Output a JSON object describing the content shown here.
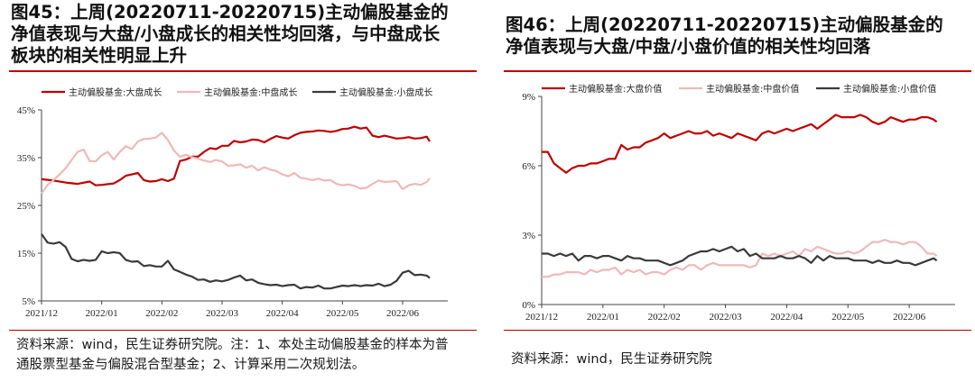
{
  "left": {
    "title_lines": [
      "图45：上周(20220711-20220715)主动偏股基金的",
      "净值表现与大盘/小盘成长的相关性均回落，与中盘成长",
      "板块的相关性明显上升"
    ],
    "source_lines": [
      "资料来源：wind，民生证券研究院。注：1、本处主动偏股基金的样本为普",
      "通股票型基金与偏股混合型基金；2、计算采用二次规划法。"
    ]
  },
  "right": {
    "title_lines": [
      "图46：上周(20220711-20220715)主动偏股基金的",
      "净值表现与大盘/中盘/小盘价值的相关性均回落"
    ],
    "source_lines": [
      "资料来源：wind，民生证券研究院"
    ]
  },
  "colors": {
    "rule": "#c00000",
    "large": "#c00000",
    "mid": "#f0b8b8",
    "small": "#3a3a3a"
  },
  "chart_data": [
    {
      "type": "line",
      "title": "",
      "xlabel": "",
      "ylabel": "",
      "ylim": [
        5,
        45
      ],
      "yticks": [
        "45%",
        "35%",
        "25%",
        "15%",
        "5%"
      ],
      "ytick_values": [
        45,
        35,
        25,
        15,
        5
      ],
      "xlim": [
        0,
        135
      ],
      "xticks": [
        "2021/12",
        "2022/01",
        "2022/02",
        "2022/03",
        "2022/04",
        "2022/05",
        "2022/06"
      ],
      "xtick_values": [
        0,
        20,
        40,
        60,
        80,
        100,
        120
      ],
      "legend_position": "top",
      "series": [
        {
          "name": "主动偏股基金:大盘成长",
          "color": "#c00000",
          "x": [
            0,
            4,
            8,
            12,
            16,
            18,
            20,
            24,
            26,
            28,
            30,
            32,
            34,
            36,
            38,
            40,
            42,
            44,
            46,
            48,
            50,
            52,
            54,
            56,
            58,
            60,
            62,
            64,
            66,
            68,
            70,
            72,
            74,
            76,
            78,
            80,
            82,
            84,
            86,
            88,
            90,
            92,
            94,
            96,
            98,
            100,
            102,
            104,
            106,
            108,
            110,
            112,
            114,
            116,
            118,
            120,
            122,
            124,
            126,
            128,
            129
          ],
          "values": [
            30.5,
            30.2,
            29.8,
            29.5,
            30,
            29.2,
            29.3,
            29.6,
            30.3,
            31.2,
            31.5,
            31.8,
            30.3,
            30,
            30.1,
            30.5,
            30.1,
            30.6,
            34.3,
            34.6,
            35.2,
            35.2,
            36.2,
            37,
            36.8,
            37.5,
            37.5,
            38.5,
            38.2,
            38.4,
            38.8,
            38.7,
            38.2,
            38.9,
            39.5,
            39.2,
            39,
            39.7,
            40.2,
            40.4,
            40.5,
            40.7,
            40.6,
            40.4,
            40.6,
            41,
            41.1,
            41.5,
            41.1,
            41.3,
            39.6,
            39.3,
            39.6,
            39.3,
            39,
            39.1,
            39.3,
            39,
            39.1,
            39.4,
            38.4
          ]
        },
        {
          "name": "主动偏股基金:中盘成长",
          "color": "#f0b8b8",
          "x": [
            0,
            2,
            4,
            6,
            8,
            10,
            12,
            14,
            16,
            18,
            20,
            22,
            24,
            26,
            28,
            30,
            32,
            34,
            36,
            38,
            40,
            42,
            44,
            46,
            48,
            50,
            52,
            54,
            56,
            58,
            60,
            62,
            64,
            66,
            68,
            70,
            72,
            74,
            76,
            78,
            80,
            82,
            84,
            86,
            88,
            90,
            92,
            94,
            96,
            98,
            100,
            102,
            104,
            106,
            108,
            110,
            112,
            114,
            116,
            118,
            120,
            122,
            124,
            126,
            128,
            129
          ],
          "values": [
            27.5,
            29.3,
            30.3,
            31.5,
            32.8,
            34.5,
            36.2,
            36.7,
            34.3,
            34.2,
            35.5,
            36.2,
            34.6,
            36.2,
            37.4,
            36.8,
            38.4,
            38.9,
            39,
            39.2,
            40.2,
            38.7,
            36.5,
            35.2,
            35.6,
            35.1,
            34.8,
            34.4,
            34.1,
            34.5,
            34.2,
            33.3,
            33.4,
            33.6,
            32.9,
            33.3,
            32.3,
            33,
            32.5,
            32.2,
            31.5,
            31.1,
            31.8,
            30.8,
            30.6,
            30.3,
            30.6,
            30.2,
            30.3,
            29.5,
            29.2,
            29.4,
            29.1,
            28.5,
            28.7,
            29.5,
            30.2,
            29.9,
            30,
            30.1,
            28.4,
            29.2,
            29.5,
            29.3,
            29.9,
            30.7
          ]
        },
        {
          "name": "主动偏股基金:小盘成长",
          "color": "#3a3a3a",
          "x": [
            0,
            2,
            4,
            6,
            8,
            10,
            12,
            14,
            16,
            18,
            20,
            22,
            24,
            26,
            28,
            30,
            32,
            34,
            36,
            38,
            40,
            42,
            44,
            46,
            48,
            50,
            52,
            54,
            56,
            58,
            60,
            62,
            64,
            66,
            68,
            70,
            72,
            74,
            76,
            78,
            80,
            82,
            84,
            86,
            88,
            90,
            92,
            94,
            96,
            98,
            100,
            102,
            104,
            106,
            108,
            110,
            112,
            114,
            116,
            118,
            120,
            122,
            124,
            126,
            128,
            129
          ],
          "values": [
            19,
            17.2,
            17,
            17.3,
            16.3,
            13.8,
            13.3,
            13.6,
            13.4,
            13.6,
            15.4,
            15,
            15.2,
            15,
            13.6,
            13.2,
            13.3,
            12.3,
            12.5,
            12.2,
            12.2,
            13.4,
            11.6,
            11.1,
            10.5,
            10.1,
            9.4,
            9.5,
            9,
            9.3,
            9.1,
            9.4,
            9.9,
            10.3,
            9.3,
            9.5,
            8.8,
            8.5,
            8.3,
            8.4,
            8.1,
            8.3,
            8.4,
            7.6,
            7.9,
            7.8,
            8.2,
            7.6,
            7.6,
            7.9,
            8.2,
            8.1,
            8.3,
            8.1,
            8.3,
            8.2,
            8.6,
            8.1,
            8.4,
            9.2,
            10.9,
            11.3,
            10.4,
            10.5,
            10.3,
            9.8
          ]
        }
      ]
    },
    {
      "type": "line",
      "title": "",
      "xlabel": "",
      "ylabel": "",
      "ylim": [
        0,
        9
      ],
      "yticks": [
        "9%",
        "6%",
        "3%",
        "0%"
      ],
      "ytick_values": [
        9,
        6,
        3,
        0
      ],
      "xlim": [
        0,
        135
      ],
      "xticks": [
        "2021/12",
        "2022/01",
        "2022/02",
        "2022/03",
        "2022/04",
        "2022/05",
        "2022/06"
      ],
      "xtick_values": [
        0,
        20,
        40,
        60,
        80,
        100,
        120
      ],
      "legend_position": "top",
      "series": [
        {
          "name": "主动偏股基金:大盘价值",
          "color": "#c00000",
          "x": [
            0,
            2,
            4,
            6,
            8,
            10,
            12,
            14,
            16,
            18,
            20,
            22,
            24,
            26,
            28,
            30,
            32,
            34,
            36,
            38,
            40,
            42,
            44,
            46,
            48,
            50,
            52,
            54,
            56,
            58,
            60,
            62,
            64,
            66,
            68,
            70,
            72,
            74,
            76,
            78,
            80,
            82,
            84,
            86,
            88,
            90,
            92,
            94,
            96,
            98,
            100,
            102,
            104,
            106,
            108,
            110,
            112,
            114,
            116,
            118,
            120,
            122,
            124,
            126,
            128,
            129
          ],
          "values": [
            6.6,
            6.6,
            6.1,
            5.9,
            5.7,
            5.9,
            6,
            6,
            6.1,
            6.1,
            6.2,
            6.3,
            6.3,
            6.9,
            6.7,
            6.8,
            6.8,
            7,
            7.1,
            7.2,
            7.4,
            7.2,
            7.3,
            7.4,
            7.5,
            7.4,
            7.4,
            7.5,
            7.3,
            7.4,
            7.3,
            7.2,
            7.4,
            7.3,
            7.2,
            7.1,
            7.4,
            7.5,
            7.4,
            7.5,
            7.6,
            7.5,
            7.6,
            7.7,
            7.8,
            7.6,
            7.8,
            8,
            8.2,
            8.1,
            8.1,
            8.1,
            8.2,
            8.1,
            7.9,
            7.8,
            7.9,
            8.1,
            8,
            7.9,
            8,
            8,
            8.1,
            8.1,
            8,
            7.9
          ]
        },
        {
          "name": "主动偏股基金:中盘价值",
          "color": "#f0b8b8",
          "x": [
            0,
            2,
            4,
            6,
            8,
            10,
            12,
            14,
            16,
            18,
            20,
            22,
            24,
            26,
            28,
            30,
            32,
            34,
            36,
            38,
            40,
            42,
            44,
            46,
            48,
            50,
            52,
            54,
            56,
            58,
            60,
            62,
            64,
            66,
            68,
            70,
            72,
            74,
            76,
            78,
            80,
            82,
            84,
            86,
            88,
            90,
            92,
            94,
            96,
            98,
            100,
            102,
            104,
            106,
            108,
            110,
            112,
            114,
            116,
            118,
            120,
            122,
            124,
            126,
            128,
            129
          ],
          "values": [
            1.2,
            1.2,
            1.3,
            1.3,
            1.4,
            1.4,
            1.4,
            1.3,
            1.5,
            1.4,
            1.5,
            1.5,
            1.6,
            1.3,
            1.5,
            1.4,
            1.5,
            1.3,
            1.4,
            1.4,
            1.3,
            1.5,
            1.6,
            1.5,
            1.7,
            1.7,
            1.5,
            1.7,
            1.8,
            1.7,
            1.7,
            1.7,
            1.7,
            1.7,
            1.6,
            1.7,
            2.2,
            2.1,
            2.2,
            2.1,
            2.2,
            2.3,
            2.1,
            2.4,
            2.3,
            2.5,
            2.4,
            2.3,
            2.2,
            2.2,
            2.3,
            2.2,
            2.3,
            2.5,
            2.7,
            2.7,
            2.8,
            2.7,
            2.7,
            2.6,
            2.7,
            2.7,
            2.5,
            2.2,
            2.2,
            2.1
          ]
        },
        {
          "name": "主动偏股基金:小盘价值",
          "color": "#3a3a3a",
          "x": [
            0,
            2,
            4,
            6,
            8,
            10,
            12,
            14,
            16,
            18,
            20,
            22,
            24,
            26,
            28,
            30,
            32,
            34,
            36,
            38,
            40,
            42,
            44,
            46,
            48,
            50,
            52,
            54,
            56,
            58,
            60,
            62,
            64,
            66,
            68,
            70,
            72,
            74,
            76,
            78,
            80,
            82,
            84,
            86,
            88,
            90,
            92,
            94,
            96,
            98,
            100,
            102,
            104,
            106,
            108,
            110,
            112,
            114,
            116,
            118,
            120,
            122,
            124,
            126,
            128,
            129
          ],
          "values": [
            2.2,
            2.2,
            2.1,
            2.2,
            2.1,
            2.2,
            1.9,
            2.1,
            2.1,
            2,
            2.1,
            2.1,
            2,
            1.9,
            2.1,
            2,
            2,
            1.9,
            1.9,
            1.9,
            1.8,
            1.7,
            1.8,
            1.9,
            2.1,
            2.2,
            2.3,
            2.3,
            2.4,
            2.3,
            2.4,
            2.5,
            2.3,
            2.4,
            2.1,
            2.2,
            2,
            2,
            2,
            2.1,
            2,
            2,
            2.1,
            2,
            1.8,
            2.1,
            1.9,
            2.1,
            2,
            2,
            2,
            1.9,
            1.9,
            1.9,
            1.8,
            1.9,
            1.8,
            1.8,
            1.9,
            1.8,
            1.8,
            1.7,
            1.8,
            1.9,
            2,
            1.9
          ]
        }
      ]
    }
  ]
}
